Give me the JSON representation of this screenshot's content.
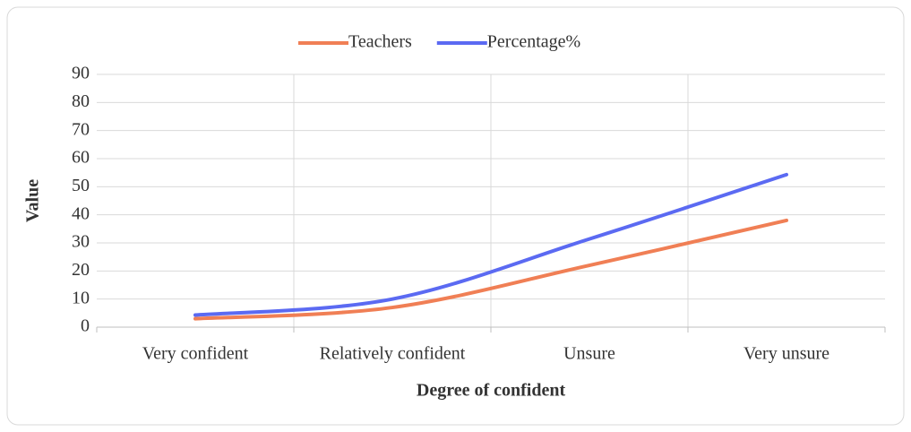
{
  "chart_data": {
    "type": "line",
    "xlabel": "Degree of confident",
    "ylabel": "Value",
    "categories": [
      "Very confident",
      "Relatively confident",
      "Unsure",
      "Very unsure"
    ],
    "series": [
      {
        "name": "Teachers",
        "color": "#f07f55",
        "values": [
          3,
          7,
          22,
          38
        ]
      },
      {
        "name": "Percentage%",
        "color": "#5b6af2",
        "values": [
          4.3,
          10,
          31.4,
          54.3
        ]
      }
    ],
    "ylim": [
      0,
      90
    ],
    "yticks": [
      0,
      10,
      20,
      30,
      40,
      50,
      60,
      70,
      80,
      90
    ],
    "grid": true,
    "smooth": true,
    "legend": "top"
  }
}
